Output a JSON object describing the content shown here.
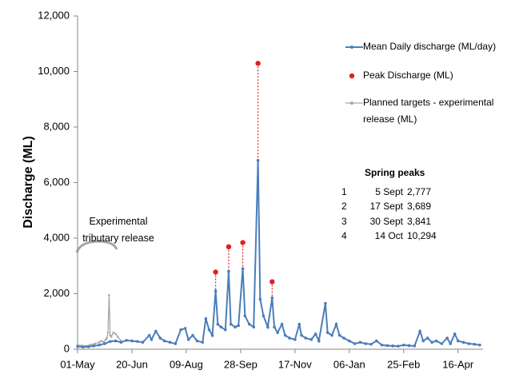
{
  "chart_data": {
    "type": "line",
    "y_label": "Discharge (ML)",
    "xlim": [
      0,
      373
    ],
    "xticks": [
      {
        "value": 0,
        "label": "01-May"
      },
      {
        "value": 50,
        "label": "20-Jun"
      },
      {
        "value": 100,
        "label": "09-Aug"
      },
      {
        "value": 150,
        "label": "28-Sep"
      },
      {
        "value": 200,
        "label": "17-Nov"
      },
      {
        "value": 250,
        "label": "06-Jan"
      },
      {
        "value": 300,
        "label": "25-Feb"
      },
      {
        "value": 350,
        "label": "16-Apr"
      }
    ],
    "ylim": [
      0,
      12000
    ],
    "yticks": [
      0,
      {
        "value": 2000,
        "label": "2,000"
      },
      {
        "value": 4000,
        "label": "4,000"
      },
      {
        "value": 6000,
        "label": "6,000"
      },
      {
        "value": 8000,
        "label": "8,000"
      },
      {
        "value": 10000,
        "label": "10,000"
      },
      {
        "value": 12000,
        "label": "12,000"
      }
    ],
    "grid": false,
    "series": [
      {
        "name": "Mean Daily discharge (ML/day)",
        "color": "#4a7ebb",
        "style": "line",
        "x": [
          0,
          5,
          10,
          15,
          20,
          25,
          30,
          35,
          40,
          45,
          50,
          55,
          60,
          66,
          68,
          72,
          76,
          80,
          85,
          90,
          95,
          99,
          102,
          106,
          110,
          115,
          118,
          121,
          124,
          127,
          129,
          132,
          136,
          139,
          141,
          145,
          148,
          152,
          154,
          158,
          162,
          166,
          168,
          171,
          175,
          179,
          181,
          184,
          188,
          191,
          195,
          200,
          204,
          206,
          210,
          215,
          219,
          222,
          228,
          230,
          234,
          238,
          241,
          245,
          250,
          255,
          260,
          265,
          270,
          275,
          280,
          285,
          290,
          295,
          300,
          305,
          310,
          315,
          318,
          322,
          326,
          330,
          335,
          340,
          343,
          347,
          350,
          355,
          360,
          365,
          370
        ],
        "values": [
          100,
          80,
          90,
          120,
          150,
          200,
          280,
          300,
          250,
          320,
          300,
          280,
          250,
          500,
          350,
          650,
          400,
          300,
          250,
          200,
          700,
          750,
          350,
          500,
          300,
          250,
          1100,
          700,
          500,
          2100,
          900,
          800,
          700,
          2800,
          900,
          800,
          850,
          2900,
          1200,
          900,
          800,
          6800,
          1800,
          1200,
          800,
          1850,
          800,
          600,
          900,
          500,
          400,
          350,
          900,
          500,
          400,
          350,
          550,
          300,
          1650,
          600,
          500,
          900,
          500,
          400,
          300,
          200,
          250,
          200,
          180,
          300,
          150,
          130,
          120,
          110,
          150,
          130,
          120,
          650,
          300,
          400,
          250,
          300,
          200,
          400,
          200,
          550,
          300,
          250,
          200,
          180,
          150
        ]
      },
      {
        "name": "Peak Discharge (ML)",
        "color": "#e02020",
        "style": "points",
        "x": [
          127,
          139,
          152,
          166,
          179
        ],
        "values": [
          2777,
          3689,
          3841,
          10294,
          2430
        ]
      },
      {
        "name": "Planned targets - experimental release (ML)",
        "color": "#a6a6a6",
        "style": "line",
        "x": [
          0,
          4,
          8,
          12,
          16,
          20,
          22,
          24,
          26,
          27,
          28,
          29,
          30,
          31,
          33,
          35,
          37,
          40
        ],
        "values": [
          150,
          130,
          120,
          160,
          200,
          250,
          300,
          260,
          350,
          400,
          600,
          1950,
          500,
          450,
          600,
          550,
          450,
          300
        ]
      }
    ],
    "annotation": "Experimental tributary release",
    "spring_peaks": {
      "title": "Spring peaks",
      "rows": [
        [
          "1",
          "5 Sept",
          "2,777"
        ],
        [
          "2",
          "17 Sept",
          "3,689"
        ],
        [
          "3",
          "30 Sept",
          "3,841"
        ],
        [
          "4",
          "14 Oct",
          "10,294"
        ]
      ]
    }
  }
}
